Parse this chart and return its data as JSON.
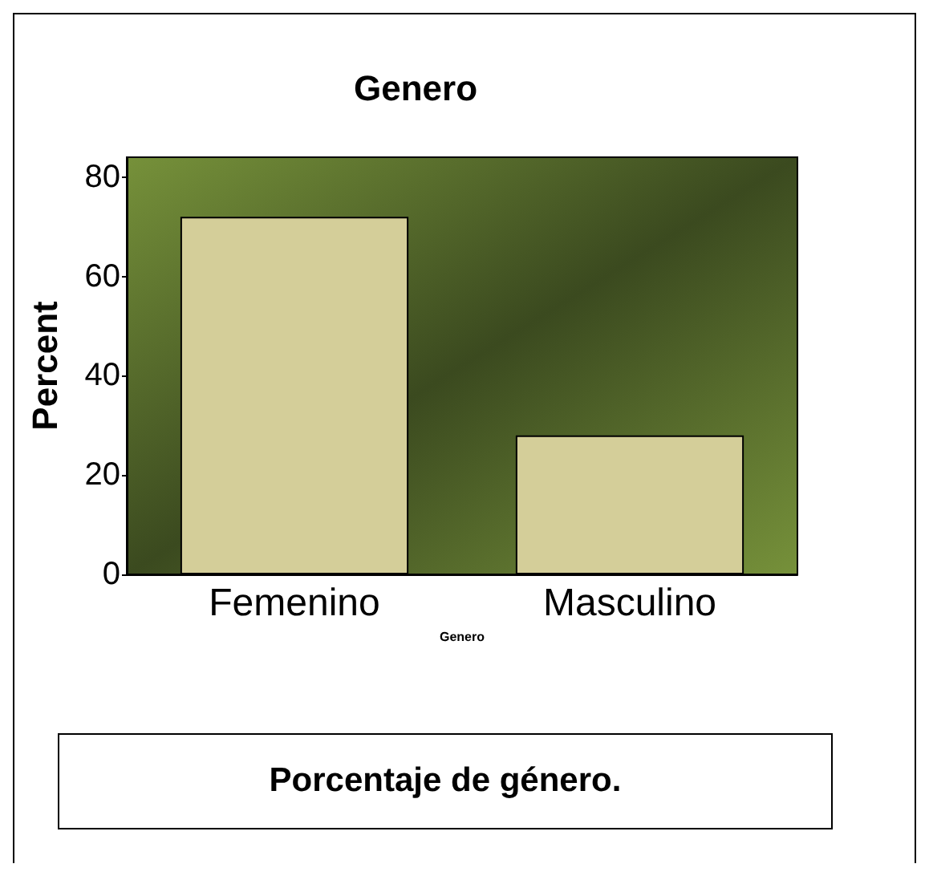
{
  "chart_data": {
    "type": "bar",
    "title": "Genero",
    "xlabel": "Genero",
    "ylabel": "Percent",
    "categories": [
      "Femenino",
      "Masculino"
    ],
    "values": [
      72,
      28
    ],
    "color": "#d4ce99",
    "ylim": [
      0,
      84
    ],
    "yticks": [
      0,
      20,
      40,
      60,
      80
    ],
    "grid": false,
    "annotations": [
      "Porcentaje de género."
    ]
  }
}
